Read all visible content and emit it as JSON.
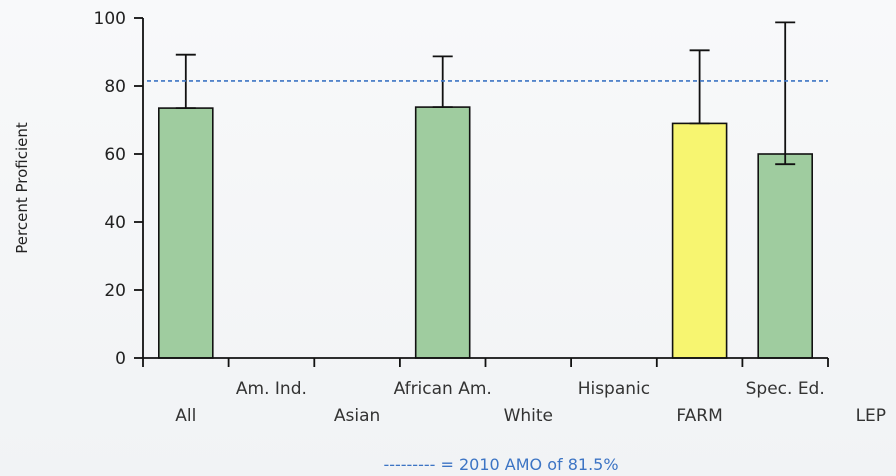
{
  "chart_data": {
    "type": "bar",
    "ylabel": "Percent Proficient",
    "ylim": [
      0,
      100
    ],
    "yticks": [
      0,
      20,
      40,
      60,
      80,
      100
    ],
    "categories": [
      "All",
      "Am. Ind.",
      "Asian",
      "African Am.",
      "White",
      "Hispanic",
      "FARM",
      "Spec. Ed.",
      "LEP"
    ],
    "category_rows": [
      2,
      1,
      2,
      1,
      2,
      1,
      2,
      1,
      2
    ],
    "values": [
      73.5,
      null,
      null,
      73.8,
      null,
      null,
      69.0,
      60.0,
      null
    ],
    "error_low": [
      null,
      null,
      null,
      null,
      null,
      null,
      null,
      57.0,
      null
    ],
    "error_high": [
      89.2,
      null,
      null,
      88.7,
      null,
      null,
      90.5,
      98.7,
      null
    ],
    "bar_colors": [
      "#9fcc9f",
      null,
      null,
      "#9fcc9f",
      null,
      null,
      "#f7f570",
      "#9fcc9f",
      null
    ],
    "reference_line": {
      "value": 81.5,
      "label": "--------- = 2010 AMO of 81.5%",
      "color": "#3c74c4",
      "style": "dashed"
    },
    "grid": false,
    "legend": "none"
  }
}
